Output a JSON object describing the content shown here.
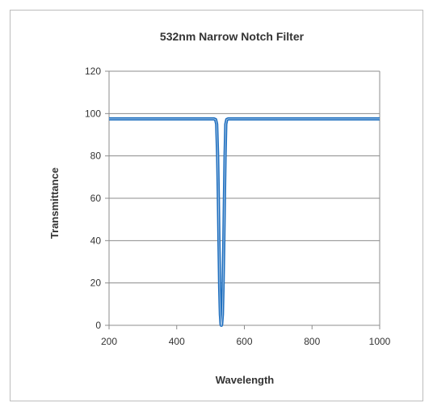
{
  "chart_data": {
    "type": "line",
    "title": "532nm Narrow Notch Filter",
    "xlabel": "Wavelength",
    "ylabel": "Transmittance",
    "xlim": [
      200,
      1000
    ],
    "ylim": [
      0,
      120
    ],
    "x_ticks": [
      200,
      400,
      600,
      800,
      1000
    ],
    "y_ticks": [
      0,
      20,
      40,
      60,
      80,
      100,
      120
    ],
    "grid": "horizontal",
    "legend": "none",
    "series": [
      {
        "color": "#1f6fbf",
        "x": [
          200,
          450,
          510,
          515,
          518,
          521,
          523,
          525,
          527,
          529,
          531,
          532,
          533,
          535,
          537,
          539,
          541,
          543,
          545,
          548,
          552,
          600,
          800,
          1000
        ],
        "y": [
          97.5,
          97.5,
          97.5,
          97.2,
          95,
          80,
          60,
          38,
          18,
          5,
          0.5,
          0,
          0.5,
          5,
          18,
          38,
          60,
          80,
          95,
          97.2,
          97.5,
          97.5,
          97.5,
          97.5
        ]
      }
    ]
  }
}
